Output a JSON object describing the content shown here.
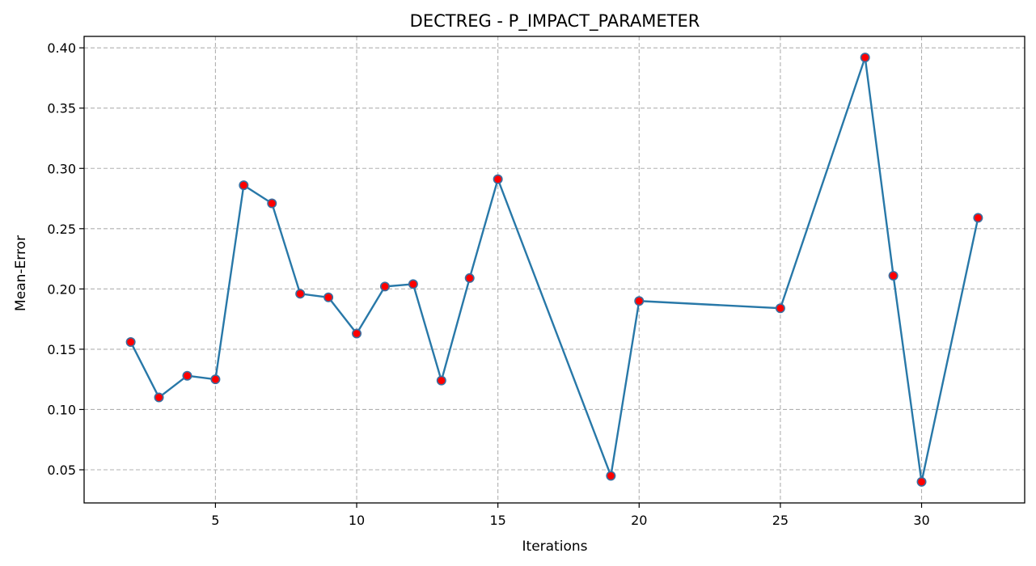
{
  "chart_data": {
    "type": "line",
    "title": "DECTREG - P_IMPACT_PARAMETER",
    "xlabel": "Iterations",
    "ylabel": "Mean-Error",
    "xlim": [
      0.35,
      33.65
    ],
    "ylim": [
      0.0225,
      0.4095
    ],
    "xticks": [
      5,
      10,
      15,
      20,
      25,
      30
    ],
    "yticks": [
      0.05,
      0.1,
      0.15,
      0.2,
      0.25,
      0.3,
      0.35,
      0.4
    ],
    "xtick_labels": [
      "5",
      "10",
      "15",
      "20",
      "25",
      "30"
    ],
    "ytick_labels": [
      "0.05",
      "0.10",
      "0.15",
      "0.20",
      "0.25",
      "0.30",
      "0.35",
      "0.40"
    ],
    "grid": true,
    "line_color": "#2878a8",
    "marker_face_color": "#ff0000",
    "marker_edge_color": "#3a6fa0",
    "series": [
      {
        "x": [
          2,
          3,
          4,
          5,
          6,
          7,
          8,
          9,
          10,
          11,
          12,
          13,
          14,
          15,
          19,
          20,
          25,
          28,
          29,
          30,
          32
        ],
        "y": [
          0.156,
          0.11,
          0.128,
          0.125,
          0.286,
          0.271,
          0.196,
          0.193,
          0.163,
          0.202,
          0.204,
          0.124,
          0.209,
          0.291,
          0.045,
          0.19,
          0.184,
          0.392,
          0.211,
          0.04,
          0.259
        ]
      }
    ]
  }
}
